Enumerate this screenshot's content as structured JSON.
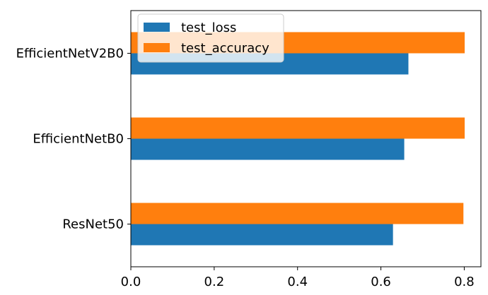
{
  "chart_data": {
    "type": "bar",
    "orientation": "horizontal",
    "categories": [
      "ResNet50",
      "EfficientNetB0",
      "EfficientNetV2B0"
    ],
    "series": [
      {
        "name": "test_loss",
        "color": "#1f77b4",
        "values": [
          0.629,
          0.656,
          0.666
        ]
      },
      {
        "name": "test_accuracy",
        "color": "#ff7f0e",
        "values": [
          0.798,
          0.801,
          0.801
        ]
      }
    ],
    "xticks": [
      0.0,
      0.2,
      0.4,
      0.6,
      0.8
    ],
    "xtick_labels": [
      "0.0",
      "0.2",
      "0.4",
      "0.6",
      "0.8"
    ],
    "xlim": [
      0,
      0.84
    ],
    "title": "",
    "xlabel": "",
    "ylabel": "",
    "grid": false,
    "legend_position": "top-left"
  }
}
